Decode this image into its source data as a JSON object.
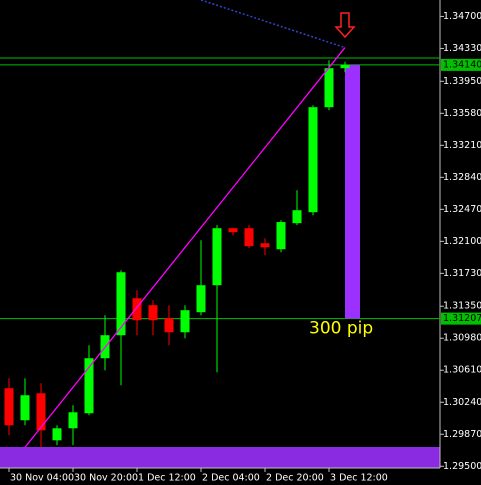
{
  "chart_data": {
    "type": "candlestick",
    "categories": [
      "30 Nov 04:00",
      null,
      null,
      null,
      "30 Nov 20:00",
      null,
      null,
      null,
      "1 Dec 12:00",
      null,
      null,
      null,
      "2 Dec 04:00",
      null,
      null,
      null,
      "2 Dec 20:00",
      null,
      null,
      null,
      "3 Dec 12:00",
      null
    ],
    "open": [
      1.30402,
      1.30032,
      1.30344,
      1.298,
      1.29939,
      1.30113,
      1.30749,
      1.31015,
      1.31442,
      1.31362,
      1.31211,
      1.31049,
      1.31281,
      1.31593,
      1.32252,
      1.32252,
      1.32078,
      1.32009,
      1.3231,
      1.32437,
      1.33651,
      1.34102
    ],
    "high": [
      1.30518,
      1.30518,
      1.3046,
      1.29974,
      1.30205,
      1.30899,
      1.31246,
      1.31766,
      1.31535,
      1.31419,
      1.31362,
      1.31362,
      1.32113,
      1.32287,
      1.32252,
      1.32287,
      1.32136,
      1.32344,
      1.32691,
      1.33674,
      1.34194,
      1.34176
    ],
    "low": [
      1.29858,
      1.29974,
      1.2972,
      1.29743,
      1.29743,
      1.3009,
      1.3061,
      1.30437,
      1.31015,
      1.31015,
      1.30899,
      1.3098,
      1.31246,
      1.30587,
      1.32171,
      1.32021,
      1.3194,
      1.31974,
      1.32287,
      1.32402,
      1.33616,
      1.34055
    ],
    "close": [
      1.29974,
      1.30321,
      1.29916,
      1.29939,
      1.30124,
      1.30749,
      1.31015,
      1.31743,
      1.31188,
      1.31188,
      1.31049,
      1.31304,
      1.31593,
      1.32252,
      1.32206,
      1.32044,
      1.32032,
      1.32323,
      1.3246,
      1.33651,
      1.34102,
      1.3414
    ],
    "up_color": "#00ff00",
    "down_color": "#ff0000",
    "ylim": [
      1.2948,
      1.3489
    ],
    "yticks": [
      {
        "value": 1.347,
        "label": "1.34700"
      },
      {
        "value": 1.3433,
        "label": "1.34330"
      },
      {
        "value": 1.3395,
        "label": "1.33950"
      },
      {
        "value": 1.3358,
        "label": "1.33580"
      },
      {
        "value": 1.3321,
        "label": "1.33210"
      },
      {
        "value": 1.3284,
        "label": "1.32840"
      },
      {
        "value": 1.3247,
        "label": "1.32470"
      },
      {
        "value": 1.321,
        "label": "1.32100"
      },
      {
        "value": 1.3173,
        "label": "1.31730"
      },
      {
        "value": 1.3135,
        "label": "1.31350"
      },
      {
        "value": 1.3098,
        "label": "1.30980"
      },
      {
        "value": 1.3061,
        "label": "1.30610"
      },
      {
        "value": 1.3024,
        "label": "1.30240"
      },
      {
        "value": 1.2987,
        "label": "1.29870"
      },
      {
        "value": 1.295,
        "label": "1.29500"
      }
    ],
    "levels": [
      1.3422,
      {
        "value": 1.3414,
        "label": "1.34140"
      },
      {
        "value": 1.31207,
        "label": "1.31207"
      }
    ],
    "level_color": "#00c000",
    "trend_line": {
      "x": [
        1,
        21
      ],
      "y": [
        1.2972,
        1.3434
      ],
      "color": "#ff00ff"
    },
    "dotted_line": {
      "x": [
        12,
        21
      ],
      "y": [
        1.3489,
        1.3434
      ],
      "color": "#3344cc"
    },
    "range_bar": {
      "values": [
        1.31207,
        1.3414
      ],
      "label": "300 pip",
      "color": "#9b30ff"
    }
  }
}
